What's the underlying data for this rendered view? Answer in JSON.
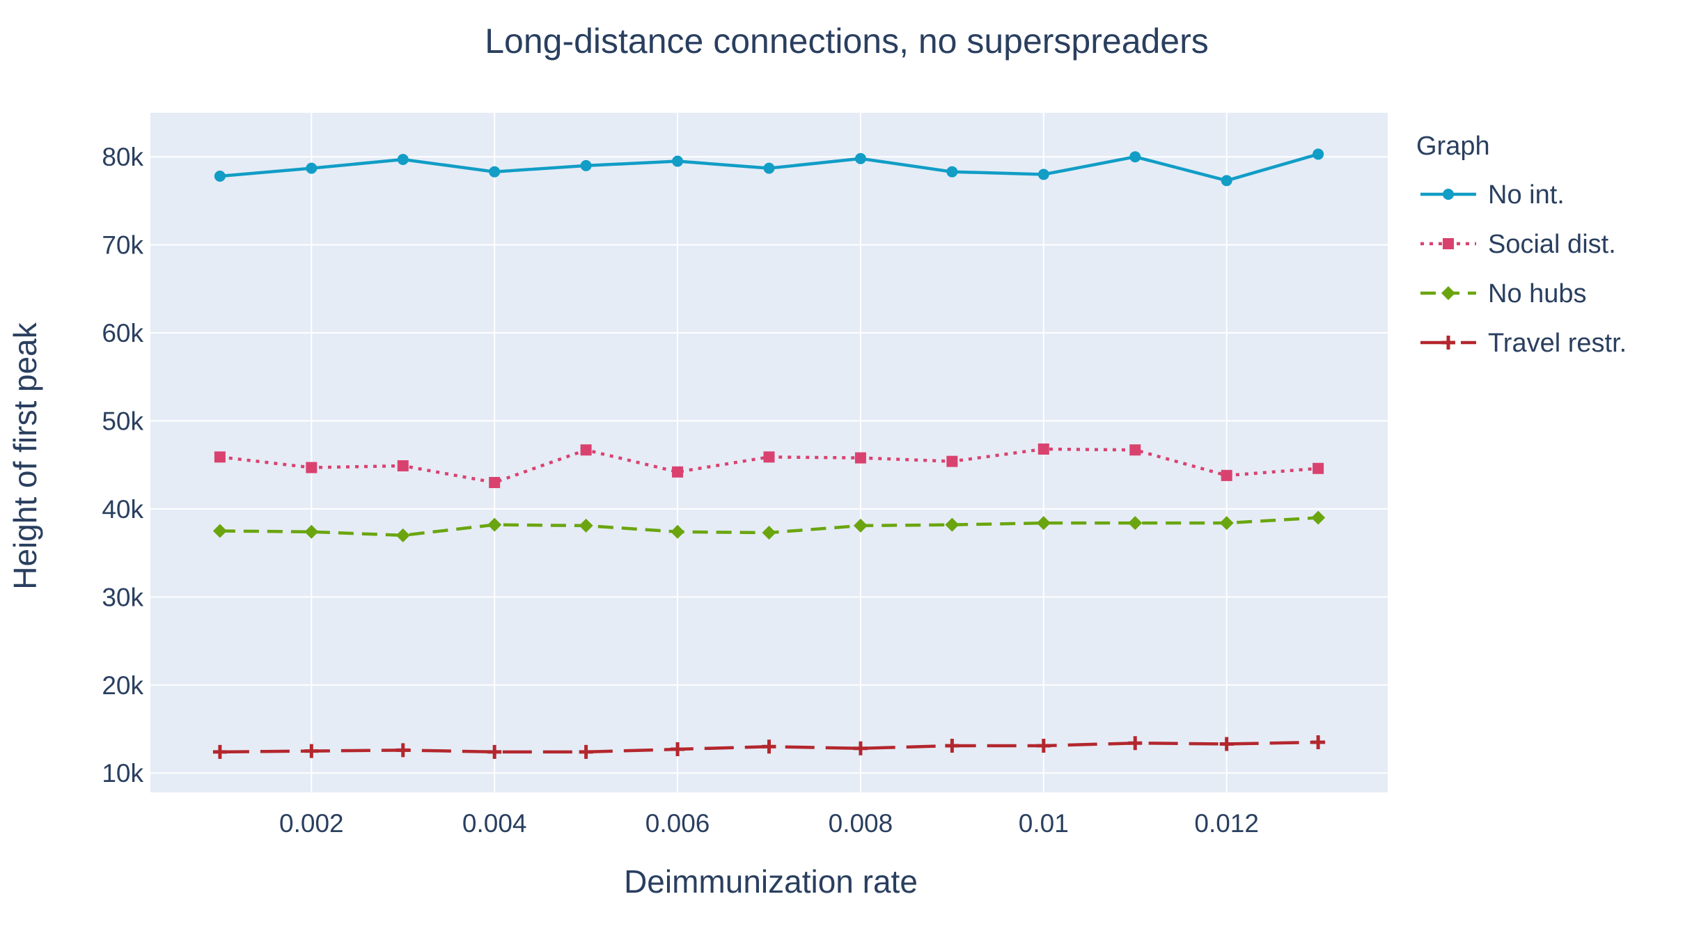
{
  "chart_data": {
    "type": "line",
    "title": "Long-distance connections, no superspreaders",
    "xlabel": "Deimmunization rate",
    "ylabel": "Height of first peak",
    "xlim": [
      0.00024,
      0.01376
    ],
    "ylim": [
      7800,
      85000
    ],
    "x": [
      0.001,
      0.002,
      0.003,
      0.004,
      0.005,
      0.006,
      0.007,
      0.008,
      0.009,
      0.01,
      0.011,
      0.012,
      0.013
    ],
    "xticks": [
      0.002,
      0.004,
      0.006,
      0.008,
      0.01,
      0.012
    ],
    "xtick_labels": [
      "0.002",
      "0.004",
      "0.006",
      "0.008",
      "0.01",
      "0.012"
    ],
    "yticks": [
      10000,
      20000,
      30000,
      40000,
      50000,
      60000,
      70000,
      80000
    ],
    "ytick_labels": [
      "10k",
      "20k",
      "30k",
      "40k",
      "50k",
      "60k",
      "70k",
      "80k"
    ],
    "grid": true,
    "legend_title": "Graph",
    "legend_position": "right",
    "series": [
      {
        "name": "No int.",
        "color": "#119dc6",
        "dash": "solid",
        "marker": "circle",
        "values": [
          77800,
          78700,
          79700,
          78300,
          79000,
          79500,
          78700,
          79800,
          78300,
          78000,
          80000,
          77300,
          80300
        ]
      },
      {
        "name": "Social dist.",
        "color": "#d9426f",
        "dash": "dot",
        "marker": "square",
        "values": [
          45900,
          44700,
          44900,
          43000,
          46700,
          44200,
          45900,
          45800,
          45400,
          46800,
          46700,
          43800,
          44600
        ]
      },
      {
        "name": "No hubs",
        "color": "#6aa50f",
        "dash": "dash",
        "marker": "diamond",
        "values": [
          37500,
          37400,
          37000,
          38200,
          38100,
          37400,
          37300,
          38100,
          38200,
          38400,
          38400,
          38400,
          39000
        ]
      },
      {
        "name": "Travel restr.",
        "color": "#b3272d",
        "dash": "longdash",
        "marker": "cross",
        "values": [
          12400,
          12500,
          12600,
          12400,
          12400,
          12700,
          13000,
          12800,
          13100,
          13100,
          13400,
          13300,
          13500
        ]
      }
    ]
  }
}
